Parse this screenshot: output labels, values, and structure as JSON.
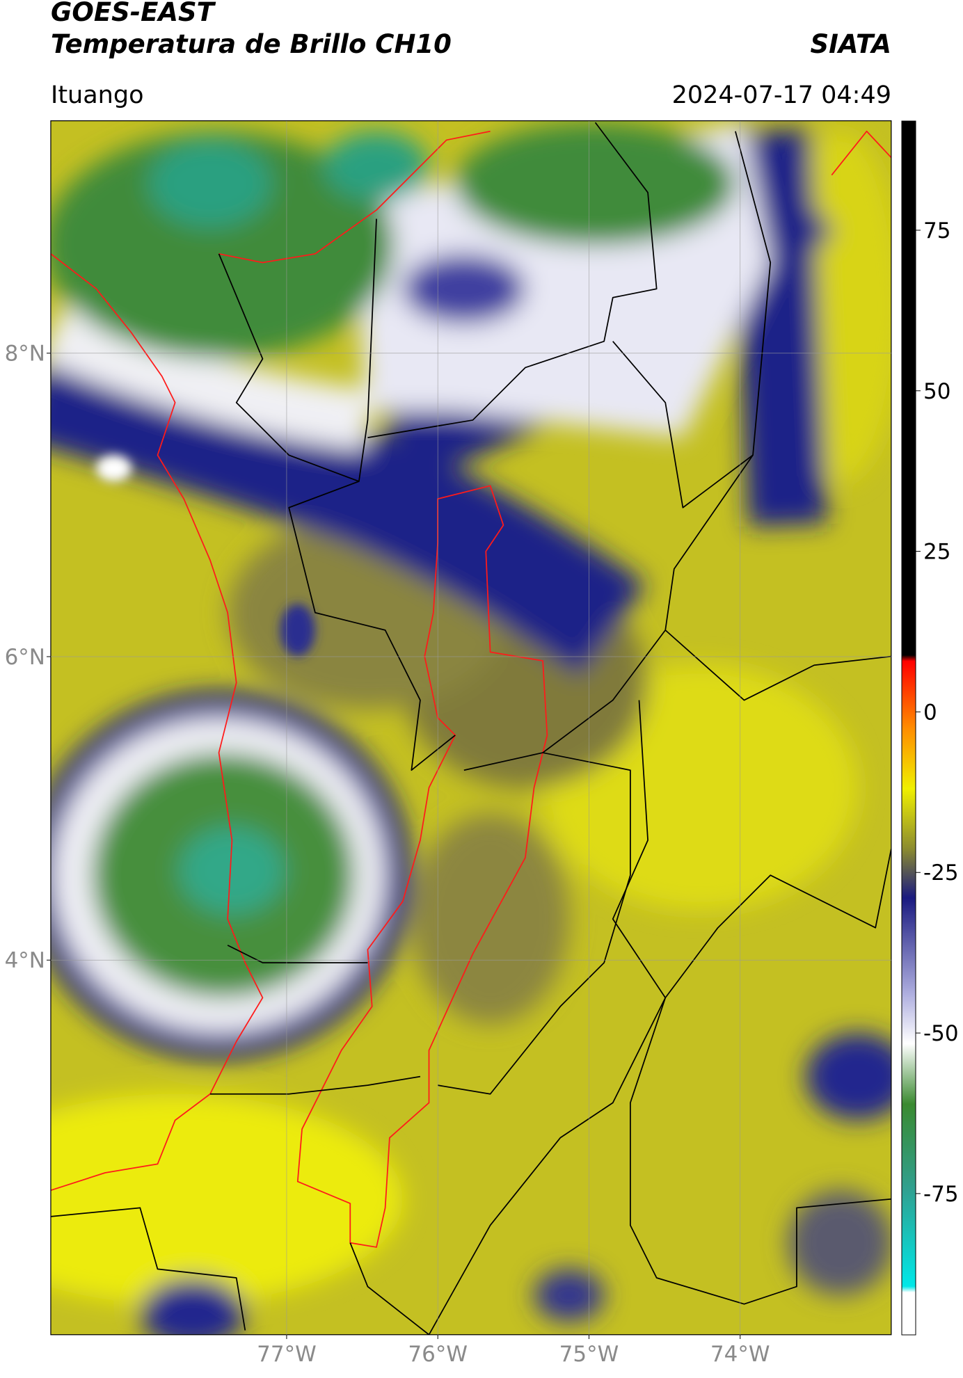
{
  "header": {
    "title": "GOES-EAST",
    "subtitle": "Temperatura de Brillo CH10",
    "source": "SIATA",
    "location": "Ituango",
    "datetime": "2024-07-17 04:49"
  },
  "map": {
    "lat_range": [
      1.53,
      9.53
    ],
    "lon_range": [
      -78.56,
      -73.0
    ],
    "lat_ticks": [
      {
        "value": 8,
        "label": "8°N"
      },
      {
        "value": 6,
        "label": "6°N"
      },
      {
        "value": 4,
        "label": "4°N"
      }
    ],
    "lon_ticks": [
      {
        "value": -77,
        "label": "77°W"
      },
      {
        "value": -76,
        "label": "76°W"
      },
      {
        "value": -75,
        "label": "75°W"
      },
      {
        "value": -74,
        "label": "74°W"
      }
    ]
  },
  "colorbar": {
    "range": [
      -97,
      92
    ],
    "ticks": [
      75,
      50,
      25,
      0,
      -25,
      -50,
      -75
    ]
  }
}
